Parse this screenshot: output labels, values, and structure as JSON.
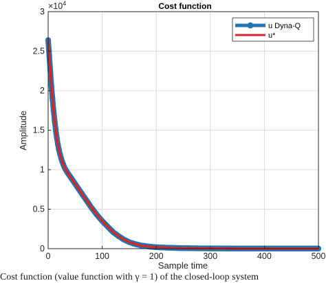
{
  "chart_data": {
    "type": "line",
    "title": "Cost function",
    "xlabel": "Sample time",
    "ylabel": "Amplitude",
    "y_exponent_label": "×10",
    "y_exponent_power": "4",
    "xlim": [
      0,
      500
    ],
    "ylim": [
      0,
      30000
    ],
    "x_ticks": [
      "0",
      "100",
      "200",
      "300",
      "400",
      "500"
    ],
    "y_ticks": [
      "0",
      "0.5",
      "1",
      "1.5",
      "2",
      "2.5",
      "3"
    ],
    "grid": true,
    "legend_placement": "top-right",
    "x": [
      0,
      2,
      4,
      6,
      8,
      10,
      12,
      15,
      18,
      21,
      25,
      30,
      35,
      40,
      50,
      60,
      70,
      80,
      90,
      100,
      110,
      120,
      130,
      140,
      150,
      160,
      170,
      180,
      190,
      200,
      220,
      240,
      260,
      280,
      300,
      340,
      380,
      420,
      460,
      500
    ],
    "series": [
      {
        "name": "u Dyna-Q",
        "color": "#1f77b4",
        "values": [
          26400,
          24500,
          22500,
          20600,
          19000,
          17500,
          16200,
          14500,
          13200,
          12200,
          11200,
          10300,
          9700,
          9200,
          8200,
          7200,
          6200,
          5200,
          4300,
          3500,
          2800,
          2100,
          1600,
          1150,
          820,
          600,
          430,
          320,
          240,
          180,
          120,
          80,
          55,
          40,
          30,
          20,
          15,
          12,
          10,
          10
        ]
      },
      {
        "name": "u*",
        "color": "#d62728",
        "values": [
          26400,
          24500,
          22500,
          20600,
          19000,
          17500,
          16200,
          14500,
          13200,
          12200,
          11200,
          10300,
          9700,
          9200,
          8200,
          7200,
          6200,
          5200,
          4300,
          3500,
          2800,
          2100,
          1600,
          1150,
          820,
          600,
          430,
          320,
          240,
          180,
          120,
          80,
          55,
          40,
          30,
          20,
          15,
          12,
          10,
          10
        ]
      }
    ]
  },
  "caption": "Cost function (value function with γ = 1) of the closed-loop system"
}
